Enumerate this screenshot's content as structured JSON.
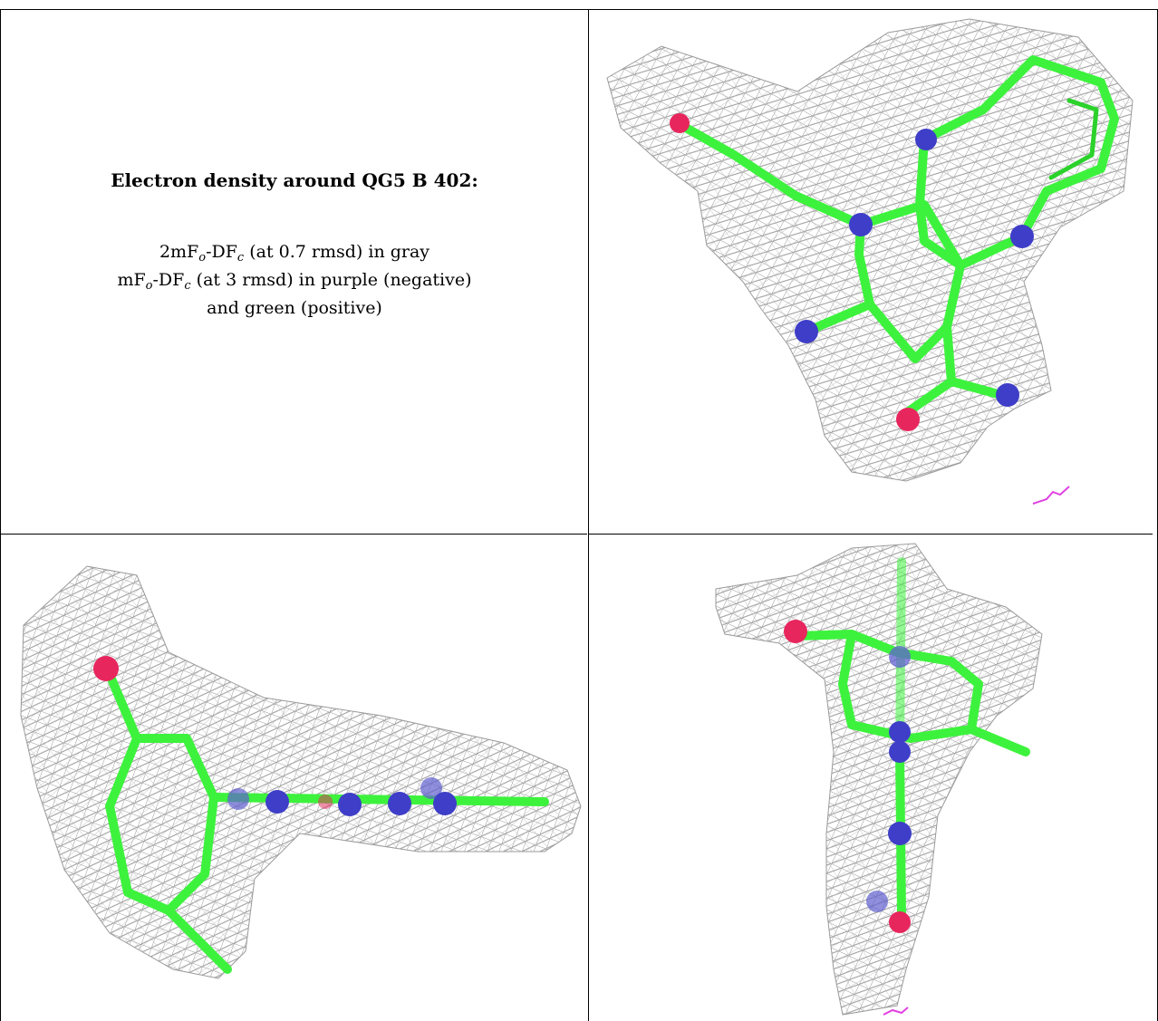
{
  "caption": {
    "title": "Electron density around QG5 B 402:",
    "line1_prefix": "2mF",
    "line1_sub1": "o",
    "line1_mid": "-DF",
    "line1_sub2": "c",
    "line1_suffix": " (at 0.7 rmsd) in gray",
    "line2_prefix": "mF",
    "line2_sub1": "o",
    "line2_mid": "-DF",
    "line2_sub2": "c",
    "line2_suffix": " (at 3 rmsd) in purple (negative)",
    "line3": "and green (positive)"
  },
  "colors": {
    "mesh": "#9a9a9a",
    "carbon": "#3df23d",
    "nitrogen": "#3e3ec8",
    "oxygen": "#e8265e",
    "negative": "#e040e0"
  }
}
